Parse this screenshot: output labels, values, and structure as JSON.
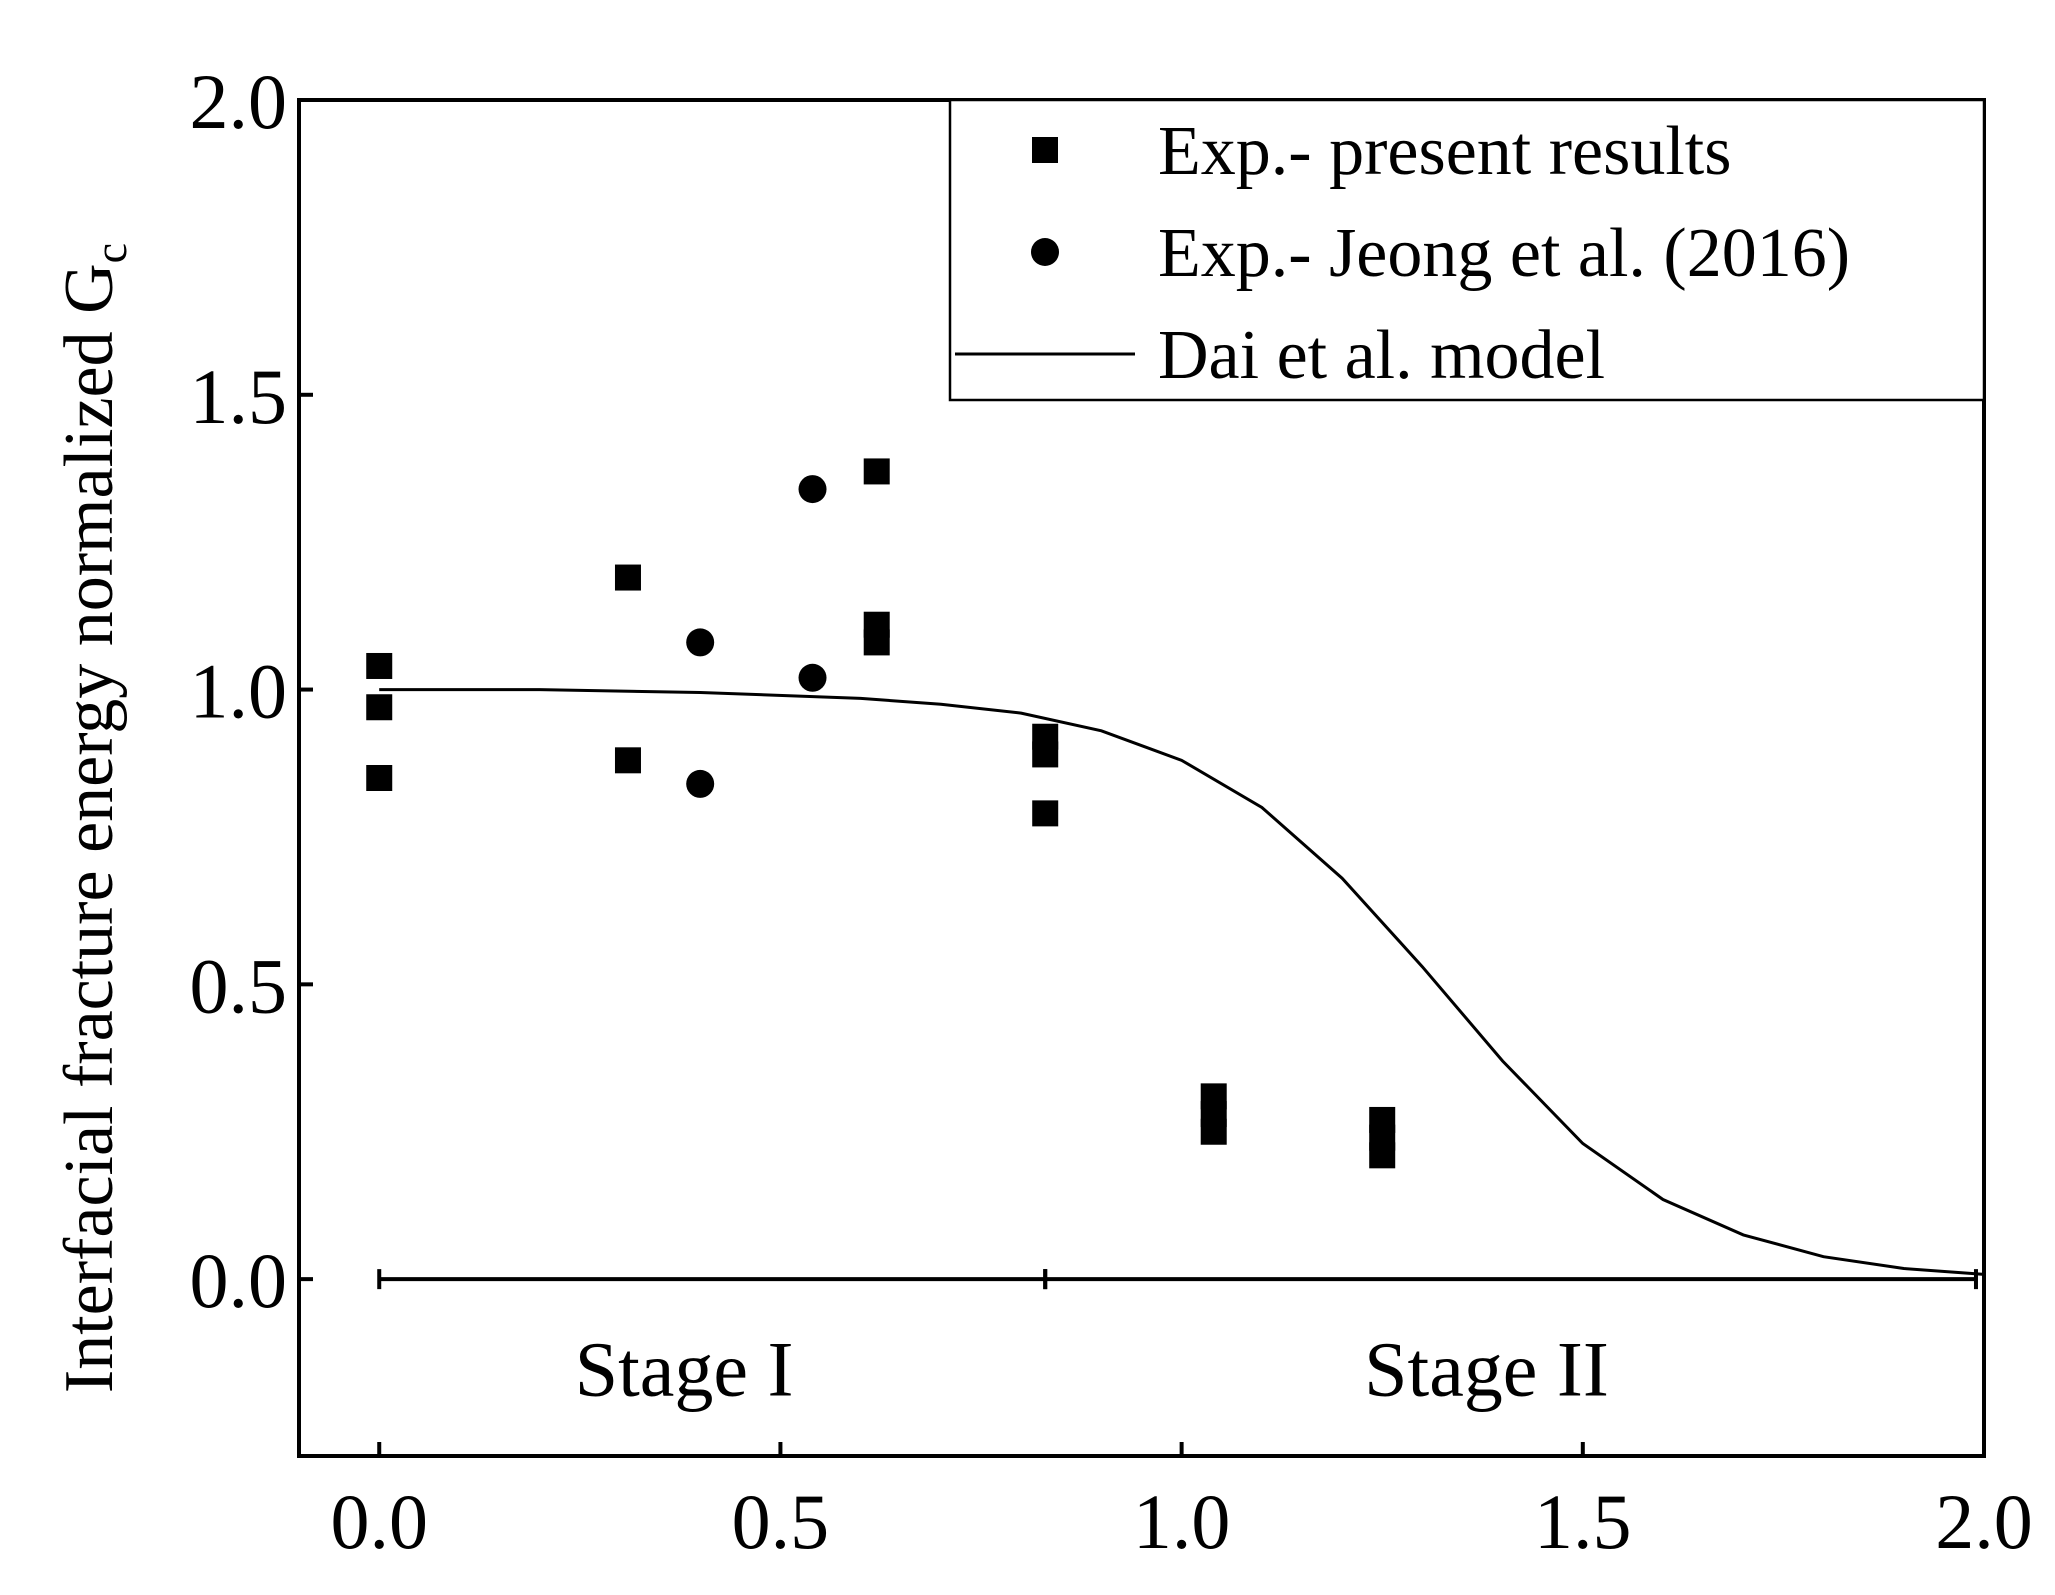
{
  "chart_data": {
    "type": "scatter",
    "title": "",
    "ylabel": "Interfacial fracture energy normalized G",
    "ylabel_subscript": "c",
    "xlabel": "",
    "xlim": [
      -0.1,
      2.0
    ],
    "ylim": [
      -0.3,
      2.0
    ],
    "xticks": [
      0.0,
      0.5,
      1.0,
      1.5,
      2.0
    ],
    "xtick_labels": [
      "0.0",
      "0.5",
      "1.0",
      "1.5",
      "2.0"
    ],
    "yticks": [
      0.0,
      0.5,
      1.0,
      1.5,
      2.0
    ],
    "ytick_labels": [
      "0.0",
      "0.5",
      "1.0",
      "1.5",
      "2.0"
    ],
    "legend_position": "top-right",
    "series": [
      {
        "name": "Exp.- present results",
        "marker": "square",
        "color": "#000000",
        "points": [
          {
            "x": 0.0,
            "y": 1.04
          },
          {
            "x": 0.0,
            "y": 0.97
          },
          {
            "x": 0.0,
            "y": 0.85
          },
          {
            "x": 0.31,
            "y": 1.19
          },
          {
            "x": 0.31,
            "y": 0.88
          },
          {
            "x": 0.62,
            "y": 1.37
          },
          {
            "x": 0.62,
            "y": 1.11
          },
          {
            "x": 0.62,
            "y": 1.08
          },
          {
            "x": 0.83,
            "y": 0.92
          },
          {
            "x": 0.83,
            "y": 0.89
          },
          {
            "x": 0.83,
            "y": 0.79
          },
          {
            "x": 1.04,
            "y": 0.31
          },
          {
            "x": 1.04,
            "y": 0.28
          },
          {
            "x": 1.04,
            "y": 0.25
          },
          {
            "x": 1.25,
            "y": 0.27
          },
          {
            "x": 1.25,
            "y": 0.24
          },
          {
            "x": 1.25,
            "y": 0.21
          }
        ]
      },
      {
        "name": "Exp.- Jeong et al. (2016)",
        "marker": "circle",
        "color": "#000000",
        "points": [
          {
            "x": 0.4,
            "y": 1.08
          },
          {
            "x": 0.4,
            "y": 0.84
          },
          {
            "x": 0.54,
            "y": 1.34
          },
          {
            "x": 0.54,
            "y": 1.02
          }
        ]
      },
      {
        "name": "Dai et al. model",
        "marker": "line",
        "color": "#000000",
        "points": [
          {
            "x": 0.0,
            "y": 1.0
          },
          {
            "x": 0.2,
            "y": 1.0
          },
          {
            "x": 0.4,
            "y": 0.995
          },
          {
            "x": 0.6,
            "y": 0.985
          },
          {
            "x": 0.7,
            "y": 0.975
          },
          {
            "x": 0.8,
            "y": 0.96
          },
          {
            "x": 0.9,
            "y": 0.93
          },
          {
            "x": 1.0,
            "y": 0.88
          },
          {
            "x": 1.1,
            "y": 0.8
          },
          {
            "x": 1.2,
            "y": 0.68
          },
          {
            "x": 1.3,
            "y": 0.53
          },
          {
            "x": 1.4,
            "y": 0.37
          },
          {
            "x": 1.5,
            "y": 0.23
          },
          {
            "x": 1.6,
            "y": 0.135
          },
          {
            "x": 1.7,
            "y": 0.075
          },
          {
            "x": 1.8,
            "y": 0.038
          },
          {
            "x": 1.9,
            "y": 0.018
          },
          {
            "x": 2.0,
            "y": 0.008
          }
        ]
      }
    ],
    "stages": [
      {
        "label": "Stage I",
        "x_start": 0.0,
        "x_end": 0.83,
        "label_x": 0.38,
        "y": 0.0,
        "label_y": -0.15
      },
      {
        "label": "Stage II",
        "x_start": 0.83,
        "x_end": 1.99,
        "label_x": 1.38,
        "y": 0.0,
        "label_y": -0.15
      }
    ]
  }
}
